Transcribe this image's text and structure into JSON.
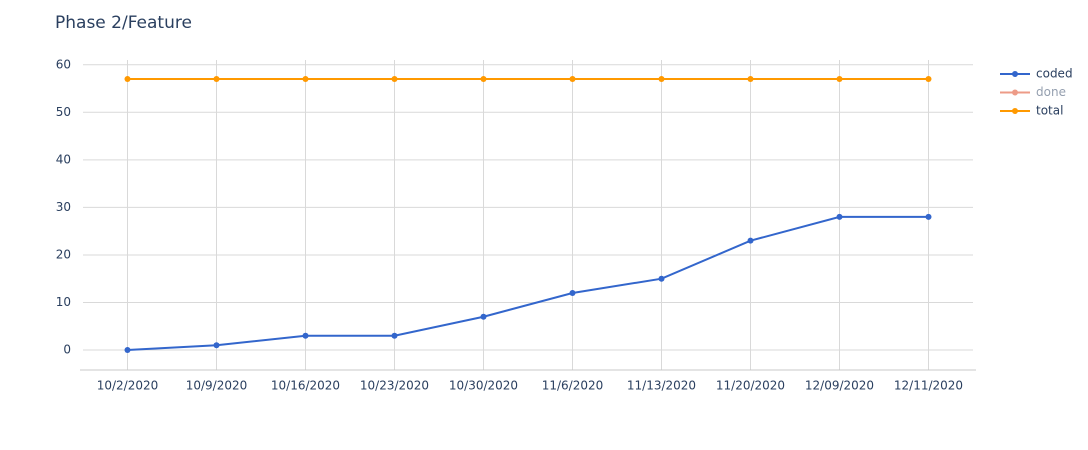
{
  "chart_data": {
    "type": "line",
    "title": "Phase 2/Feature",
    "categories": [
      "10/2/2020",
      "10/9/2020",
      "10/16/2020",
      "10/23/2020",
      "10/30/2020",
      "11/6/2020",
      "11/13/2020",
      "11/20/2020",
      "12/09/2020",
      "12/11/2020"
    ],
    "series": [
      {
        "name": "coded",
        "color": "#3366cc",
        "values": [
          0,
          1,
          3,
          3,
          7,
          12,
          15,
          23,
          28,
          28
        ]
      },
      {
        "name": "done",
        "color": "#dc3912",
        "visible": "legendonly",
        "values": [
          null,
          null,
          null,
          null,
          null,
          null,
          null,
          null,
          null,
          null
        ]
      },
      {
        "name": "total",
        "color": "#ff9900",
        "values": [
          57,
          57,
          57,
          57,
          57,
          57,
          57,
          57,
          57,
          57
        ]
      }
    ],
    "ylim": [
      -4.2,
      61
    ],
    "yticks": [
      0,
      10,
      20,
      30,
      40,
      50,
      60
    ],
    "grid": true,
    "legend": "right"
  }
}
